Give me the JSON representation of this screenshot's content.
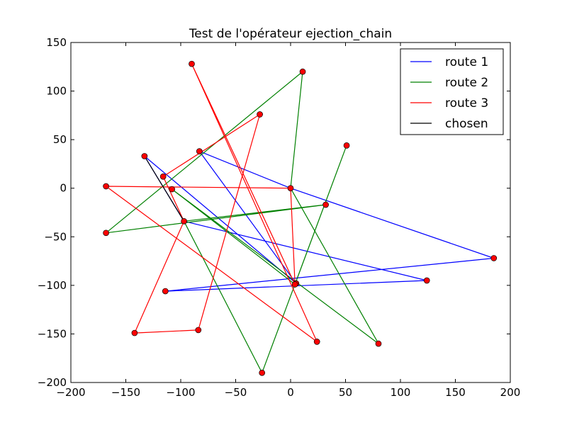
{
  "chart_data": {
    "type": "line",
    "title": "Test de l'opérateur ejection_chain",
    "xlabel": "",
    "ylabel": "",
    "xlim": [
      -200,
      200
    ],
    "ylim": [
      -200,
      150
    ],
    "xticks": [
      -200,
      -150,
      -100,
      -50,
      0,
      50,
      100,
      150,
      200
    ],
    "yticks": [
      150,
      100,
      50,
      0,
      -50,
      -100,
      -150,
      -200
    ],
    "xtick_labels": [
      "−200",
      "−150",
      "−100",
      "−50",
      "0",
      "50",
      "100",
      "150",
      "200"
    ],
    "ytick_labels": [
      "150",
      "100",
      "50",
      "0",
      "−50",
      "−100",
      "−150",
      "−200"
    ],
    "grid": false,
    "legend_position": "top-right",
    "series": [
      {
        "name": "route 1",
        "color": "#0000ff",
        "points": [
          [
            0,
            0
          ],
          [
            -83,
            38
          ],
          [
            5,
            -98
          ],
          [
            -133,
            33
          ],
          [
            -97,
            -34
          ],
          [
            124,
            -95
          ],
          [
            -114,
            -106
          ],
          [
            185,
            -72
          ],
          [
            0,
            0
          ]
        ]
      },
      {
        "name": "route 2",
        "color": "#008000",
        "points": [
          [
            0,
            0
          ],
          [
            80,
            -160
          ],
          [
            -108,
            -1
          ],
          [
            4,
            -99
          ],
          [
            51,
            44
          ],
          [
            -26,
            -190
          ],
          [
            -97,
            -34
          ],
          [
            32,
            -17
          ],
          [
            -168,
            -46
          ],
          [
            11,
            120
          ],
          [
            0,
            0
          ]
        ]
      },
      {
        "name": "route 3",
        "color": "#ff0000",
        "points": [
          [
            0,
            0
          ],
          [
            -168,
            2
          ],
          [
            24,
            -158
          ],
          [
            -90,
            128
          ],
          [
            4,
            -99
          ],
          [
            0,
            0
          ]
        ]
      },
      {
        "name": "route 3",
        "color": "#ff0000",
        "points": [
          [
            -84,
            -146
          ],
          [
            -142,
            -149
          ],
          [
            -97,
            -34
          ],
          [
            -116,
            12
          ],
          [
            -28,
            76
          ],
          [
            -84,
            -146
          ]
        ]
      },
      {
        "name": "chosen",
        "color": "#000000",
        "points": [
          [
            -133,
            33
          ],
          [
            -97,
            -34
          ]
        ]
      }
    ],
    "legend": [
      {
        "name": "route 1",
        "color": "#0000ff"
      },
      {
        "name": "route 2",
        "color": "#008000"
      },
      {
        "name": "route 3",
        "color": "#ff0000"
      },
      {
        "name": "chosen",
        "color": "#000000"
      }
    ],
    "points": [
      [
        0,
        0
      ],
      [
        -83,
        38
      ],
      [
        5,
        -98
      ],
      [
        -133,
        33
      ],
      [
        -97,
        -34
      ],
      [
        124,
        -95
      ],
      [
        -114,
        -106
      ],
      [
        185,
        -72
      ],
      [
        80,
        -160
      ],
      [
        -108,
        -1
      ],
      [
        4,
        -99
      ],
      [
        51,
        44
      ],
      [
        -26,
        -190
      ],
      [
        32,
        -17
      ],
      [
        -168,
        -46
      ],
      [
        11,
        120
      ],
      [
        -168,
        2
      ],
      [
        24,
        -158
      ],
      [
        -90,
        128
      ],
      [
        -84,
        -146
      ],
      [
        -142,
        -149
      ],
      [
        -116,
        12
      ],
      [
        -28,
        76
      ]
    ],
    "marker_color": "#ff0000"
  }
}
